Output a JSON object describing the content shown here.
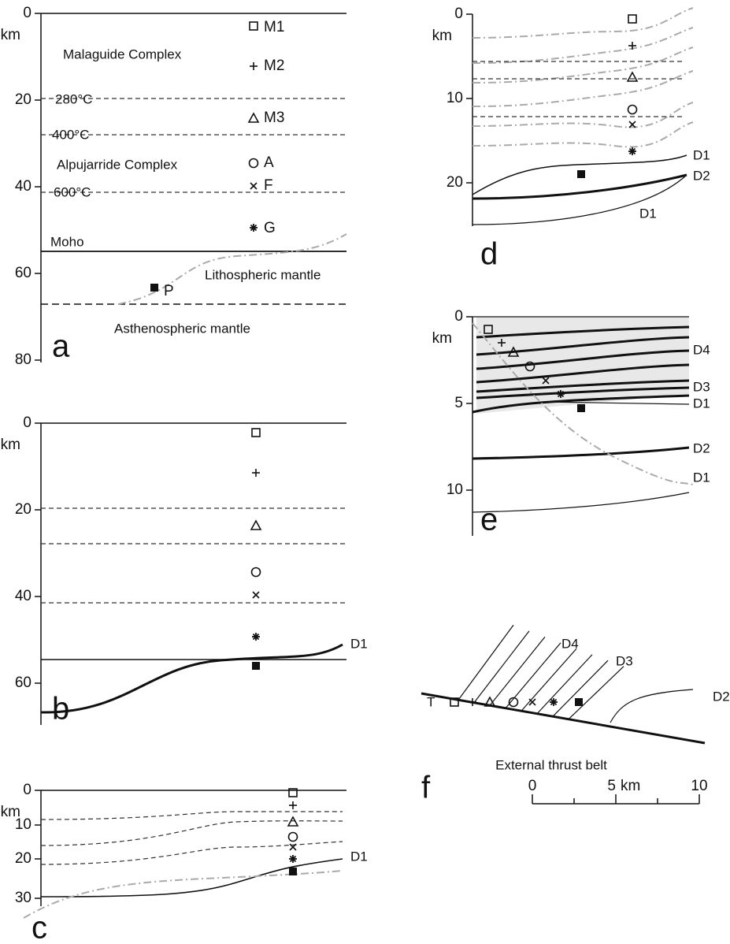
{
  "panel_a": {
    "label": "a",
    "unit": "km",
    "ticks": [
      0,
      20,
      40,
      60,
      80
    ],
    "labels": [
      "Malaguide Complex",
      "Alpujarride Complex",
      "Moho",
      "Lithospheric mantle",
      "Asthenospheric mantle"
    ],
    "isotherms": [
      "280°C",
      "400°C",
      "600°C"
    ],
    "samples": [
      "M1",
      "M2",
      "M3",
      "A",
      "F",
      "G",
      "P"
    ]
  },
  "panel_b": {
    "label": "b",
    "unit": "km",
    "ticks": [
      0,
      20,
      40,
      60
    ],
    "detachments": [
      "D1"
    ]
  },
  "panel_c": {
    "label": "c",
    "unit": "km",
    "ticks": [
      0,
      10,
      20,
      30
    ],
    "detachments": [
      "D1"
    ]
  },
  "panel_d": {
    "label": "d",
    "unit": "km",
    "ticks": [
      0,
      10,
      20
    ],
    "detachments": [
      "D1",
      "D2",
      "D1"
    ]
  },
  "panel_e": {
    "label": "e",
    "unit": "km",
    "ticks": [
      0,
      5,
      10
    ],
    "detachments": [
      "D4",
      "D3",
      "D1",
      "D2",
      "D1"
    ]
  },
  "panel_f": {
    "label": "f",
    "caption": "External thrust belt",
    "thrust": "T",
    "detachments": [
      "D4",
      "D3",
      "D2"
    ],
    "scale_ticks": [
      0,
      5,
      10
    ],
    "scale_unit": "km"
  }
}
